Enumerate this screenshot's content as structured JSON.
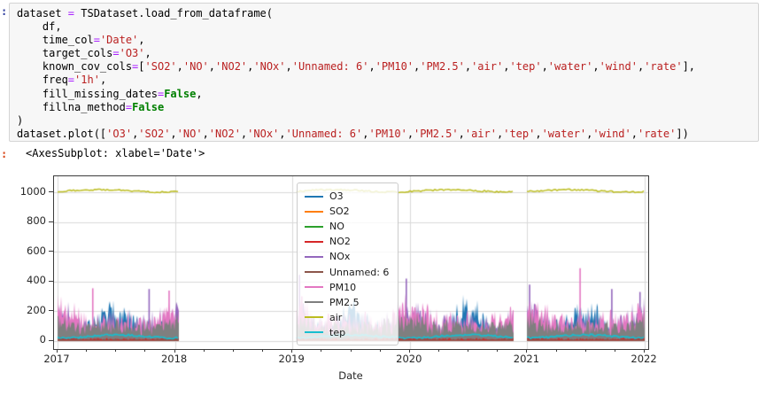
{
  "notebook": {
    "input_prompt": ":",
    "output_prompt": ":",
    "output_text": "<AxesSubplot: xlabel='Date'>",
    "code_lines": [
      [
        [
          "p",
          "dataset "
        ],
        [
          "o",
          "="
        ],
        [
          "p",
          " TSDataset.load_from_dataframe("
        ]
      ],
      [
        [
          "p",
          "    df,"
        ]
      ],
      [
        [
          "p",
          "    time_col"
        ],
        [
          "o",
          "="
        ],
        [
          "s",
          "'Date'"
        ],
        [
          "p",
          ","
        ]
      ],
      [
        [
          "p",
          "    target_cols"
        ],
        [
          "o",
          "="
        ],
        [
          "s",
          "'O3'"
        ],
        [
          "p",
          ","
        ]
      ],
      [
        [
          "p",
          "    known_cov_cols"
        ],
        [
          "o",
          "="
        ],
        [
          "p",
          "["
        ],
        [
          "s",
          "'SO2'"
        ],
        [
          "p",
          ","
        ],
        [
          "s",
          "'NO'"
        ],
        [
          "p",
          ","
        ],
        [
          "s",
          "'NO2'"
        ],
        [
          "p",
          ","
        ],
        [
          "s",
          "'NOx'"
        ],
        [
          "p",
          ","
        ],
        [
          "s",
          "'Unnamed: 6'"
        ],
        [
          "p",
          ","
        ],
        [
          "s",
          "'PM10'"
        ],
        [
          "p",
          ","
        ],
        [
          "s",
          "'PM2.5'"
        ],
        [
          "p",
          ","
        ],
        [
          "s",
          "'air'"
        ],
        [
          "p",
          ","
        ],
        [
          "s",
          "'tep'"
        ],
        [
          "p",
          ","
        ],
        [
          "s",
          "'water'"
        ],
        [
          "p",
          ","
        ],
        [
          "s",
          "'wind'"
        ],
        [
          "p",
          ","
        ],
        [
          "s",
          "'rate'"
        ],
        [
          "p",
          "],"
        ]
      ],
      [
        [
          "p",
          "    freq"
        ],
        [
          "o",
          "="
        ],
        [
          "s",
          "'1h'"
        ],
        [
          "p",
          ","
        ]
      ],
      [
        [
          "p",
          "    fill_missing_dates"
        ],
        [
          "o",
          "="
        ],
        [
          "k",
          "False"
        ],
        [
          "p",
          ","
        ]
      ],
      [
        [
          "p",
          "    fillna_method"
        ],
        [
          "o",
          "="
        ],
        [
          "k",
          "False"
        ]
      ],
      [
        [
          "p",
          ")"
        ]
      ],
      [
        [
          "p",
          "dataset.plot(["
        ],
        [
          "s",
          "'O3'"
        ],
        [
          "p",
          ","
        ],
        [
          "s",
          "'SO2'"
        ],
        [
          "p",
          ","
        ],
        [
          "s",
          "'NO'"
        ],
        [
          "p",
          ","
        ],
        [
          "s",
          "'NO2'"
        ],
        [
          "p",
          ","
        ],
        [
          "s",
          "'NOx'"
        ],
        [
          "p",
          ","
        ],
        [
          "s",
          "'Unnamed: 6'"
        ],
        [
          "p",
          ","
        ],
        [
          "s",
          "'PM10'"
        ],
        [
          "p",
          ","
        ],
        [
          "s",
          "'PM2.5'"
        ],
        [
          "p",
          ","
        ],
        [
          "s",
          "'air'"
        ],
        [
          "p",
          ","
        ],
        [
          "s",
          "'tep'"
        ],
        [
          "p",
          ","
        ],
        [
          "s",
          "'water'"
        ],
        [
          "p",
          ","
        ],
        [
          "s",
          "'wind'"
        ],
        [
          "p",
          ","
        ],
        [
          "s",
          "'rate'"
        ],
        [
          "p",
          "])"
        ]
      ]
    ]
  },
  "colors": {
    "cell_bg": "#f7f7f7",
    "cell_border": "#d4d4d4",
    "in_prompt": "#303F9F",
    "out_prompt": "#D84315",
    "operator": "#AA22FF",
    "string": "#BA2121",
    "keyword": "#008000",
    "grid": "#d9d9d9",
    "spine": "#3c3c3c"
  },
  "chart_data": {
    "type": "line",
    "title": "",
    "xlabel": "Date",
    "ylabel": "",
    "grid": true,
    "legend_position": "upper-center-left",
    "x_ticks": [
      2017,
      2018,
      2019,
      2020,
      2021,
      2022
    ],
    "x_minor_step": 0.25,
    "y_ticks": [
      0,
      200,
      400,
      600,
      800,
      1000
    ],
    "xlim": [
      2016.97,
      2022.03
    ],
    "ylim": [
      -55,
      1110
    ],
    "seed": 7,
    "segments": [
      [
        2017.0,
        2018.03
      ],
      [
        2019.04,
        2020.88
      ],
      [
        2021.0,
        2022.0
      ]
    ],
    "plotted_columns": [
      "O3",
      "SO2",
      "NO",
      "NO2",
      "NOx",
      "Unnamed: 6",
      "PM10",
      "PM2.5",
      "air",
      "tep",
      "water",
      "wind",
      "rate"
    ],
    "legend": [
      {
        "label": "O3",
        "color": "#1f77b4"
      },
      {
        "label": "SO2",
        "color": "#ff7f0e"
      },
      {
        "label": "NO",
        "color": "#2ca02c"
      },
      {
        "label": "NO2",
        "color": "#d62728"
      },
      {
        "label": "NOx",
        "color": "#9467bd"
      },
      {
        "label": "Unnamed: 6",
        "color": "#8c564b"
      },
      {
        "label": "PM10",
        "color": "#e377c2"
      },
      {
        "label": "PM2.5",
        "color": "#7f7f7f"
      },
      {
        "label": "air",
        "color": "#bcbd22"
      },
      {
        "label": "tep",
        "color": "#17becf"
      }
    ],
    "series": [
      {
        "name": "O3",
        "color": "#1f77b4",
        "kind": "band",
        "lo": 2,
        "base": 40,
        "seas": 170,
        "phase": 0.25,
        "pow": 2,
        "amp": 120,
        "spiky": 1.7
      },
      {
        "name": "SO2",
        "color": "#ff7f0e",
        "kind": "band",
        "lo": 0,
        "base": 8,
        "seas": 14,
        "phase": 0.75,
        "pow": 1,
        "amp": 20,
        "spiky": 2
      },
      {
        "name": "NO",
        "color": "#2ca02c",
        "kind": "band",
        "lo": 0,
        "base": 5,
        "seas": 12,
        "phase": 0.75,
        "pow": 1,
        "amp": 18,
        "spiky": 2
      },
      {
        "name": "NOx",
        "color": "#9467bd",
        "kind": "band",
        "lo": 2,
        "base": 50,
        "seas": 150,
        "phase": 0.75,
        "pow": 2,
        "amp": 150,
        "spiky": 1.9,
        "spikes": [
          [
            2019.06,
            445
          ],
          [
            2019.97,
            420
          ],
          [
            2021.02,
            380
          ],
          [
            2021.96,
            330
          ],
          [
            2017.78,
            350
          ],
          [
            2021.72,
            350
          ]
        ]
      },
      {
        "name": "PM10",
        "color": "#e377c2",
        "kind": "band",
        "lo": 5,
        "base": 90,
        "seas": 120,
        "phase": 0.75,
        "pow": 1.5,
        "amp": 130,
        "spiky": 1.5,
        "spikes": [
          [
            2021.45,
            490
          ],
          [
            2017.3,
            355
          ],
          [
            2017.95,
            340
          ],
          [
            2019.08,
            300
          ]
        ]
      },
      {
        "name": "PM2.5",
        "color": "#7f7f7f",
        "kind": "band",
        "lo": 0,
        "base": 70,
        "seas": 70,
        "phase": 0.75,
        "pow": 1.5,
        "amp": 90,
        "spiky": 1.3
      },
      {
        "name": "NO2",
        "color": "#d62728",
        "kind": "band",
        "lo": 0,
        "base": 10,
        "seas": 8,
        "phase": 0.75,
        "pow": 1,
        "amp": 12,
        "spiky": 1.5
      },
      {
        "name": "Unnamed: 6",
        "color": "#8c564b",
        "kind": "band",
        "lo": 0,
        "base": 7,
        "seas": 5,
        "phase": 0.75,
        "pow": 1,
        "amp": 8,
        "spiky": 1.5
      },
      {
        "name": "air",
        "color": "#bcbd22",
        "kind": "line",
        "base": 1012,
        "wave": 8,
        "phase": 0.1,
        "noise": 5,
        "width": 1.5
      },
      {
        "name": "tep",
        "color": "#17becf",
        "kind": "line",
        "base": 30,
        "wave": 10,
        "phase": 0.25,
        "noise": 6,
        "width": 1.7
      }
    ]
  }
}
